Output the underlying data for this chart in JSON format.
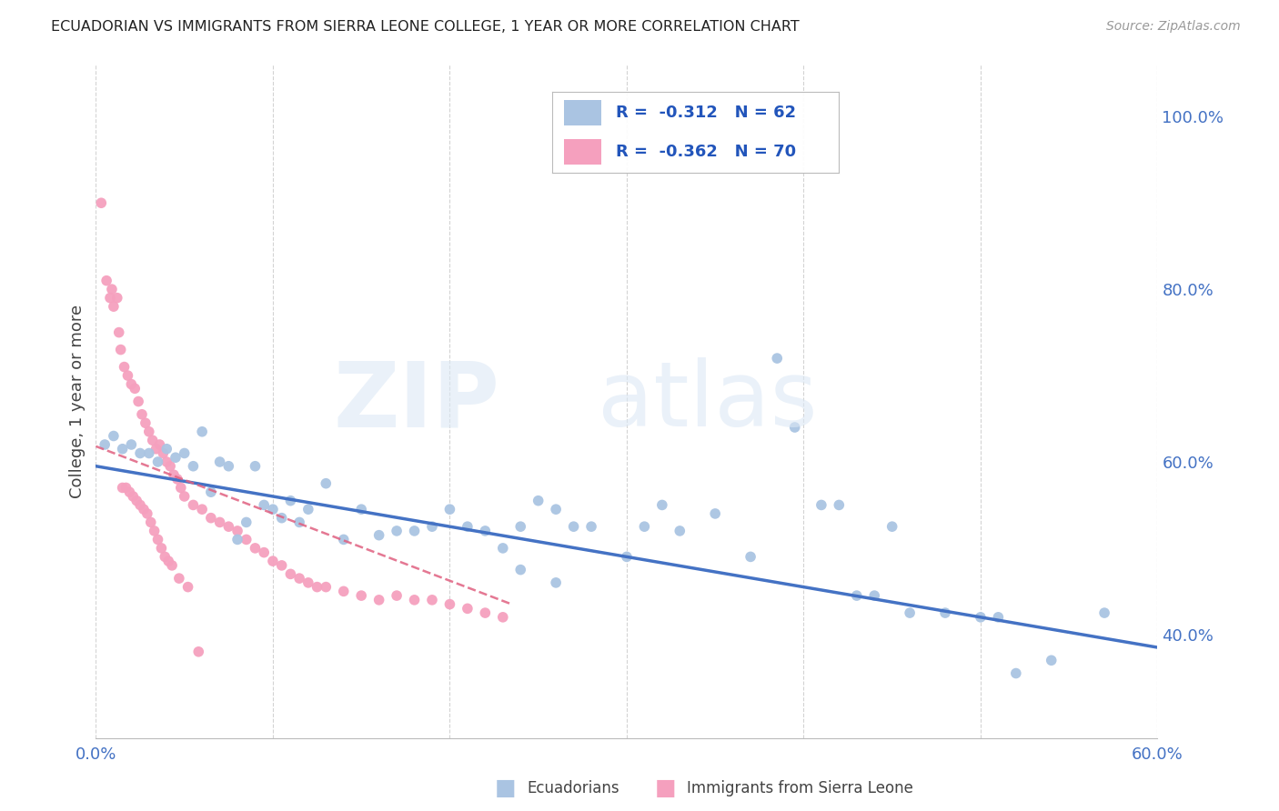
{
  "title": "ECUADORIAN VS IMMIGRANTS FROM SIERRA LEONE COLLEGE, 1 YEAR OR MORE CORRELATION CHART",
  "source": "Source: ZipAtlas.com",
  "ylabel": "College, 1 year or more",
  "ylabel_right_ticks": [
    "40.0%",
    "60.0%",
    "80.0%",
    "100.0%"
  ],
  "ylabel_right_vals": [
    0.4,
    0.6,
    0.8,
    1.0
  ],
  "xmin": 0.0,
  "xmax": 0.6,
  "ymin": 0.28,
  "ymax": 1.06,
  "blue_R": "-0.312",
  "blue_N": "62",
  "pink_R": "-0.362",
  "pink_N": "70",
  "blue_color": "#aac4e2",
  "pink_color": "#f5a0be",
  "blue_line_color": "#4472c4",
  "pink_line_color": "#e06080",
  "legend_text_color": "#2255bb",
  "blue_scatter_x": [
    0.005,
    0.01,
    0.015,
    0.02,
    0.025,
    0.03,
    0.035,
    0.04,
    0.045,
    0.05,
    0.055,
    0.06,
    0.065,
    0.07,
    0.075,
    0.08,
    0.085,
    0.09,
    0.095,
    0.1,
    0.105,
    0.11,
    0.115,
    0.12,
    0.13,
    0.14,
    0.15,
    0.16,
    0.17,
    0.18,
    0.19,
    0.2,
    0.21,
    0.22,
    0.23,
    0.24,
    0.25,
    0.26,
    0.27,
    0.28,
    0.3,
    0.31,
    0.32,
    0.33,
    0.35,
    0.37,
    0.385,
    0.395,
    0.41,
    0.42,
    0.43,
    0.44,
    0.45,
    0.46,
    0.48,
    0.5,
    0.51,
    0.52,
    0.54,
    0.57,
    0.24,
    0.26
  ],
  "blue_scatter_y": [
    0.62,
    0.63,
    0.615,
    0.62,
    0.61,
    0.61,
    0.6,
    0.615,
    0.605,
    0.61,
    0.595,
    0.635,
    0.565,
    0.6,
    0.595,
    0.51,
    0.53,
    0.595,
    0.55,
    0.545,
    0.535,
    0.555,
    0.53,
    0.545,
    0.575,
    0.51,
    0.545,
    0.515,
    0.52,
    0.52,
    0.525,
    0.545,
    0.525,
    0.52,
    0.5,
    0.525,
    0.555,
    0.545,
    0.525,
    0.525,
    0.49,
    0.525,
    0.55,
    0.52,
    0.54,
    0.49,
    0.72,
    0.64,
    0.55,
    0.55,
    0.445,
    0.445,
    0.525,
    0.425,
    0.425,
    0.42,
    0.42,
    0.355,
    0.37,
    0.425,
    0.475,
    0.46
  ],
  "pink_scatter_x": [
    0.003,
    0.006,
    0.009,
    0.012,
    0.014,
    0.016,
    0.018,
    0.02,
    0.022,
    0.024,
    0.026,
    0.028,
    0.03,
    0.032,
    0.034,
    0.036,
    0.038,
    0.04,
    0.042,
    0.044,
    0.046,
    0.048,
    0.05,
    0.055,
    0.06,
    0.065,
    0.07,
    0.075,
    0.08,
    0.085,
    0.09,
    0.095,
    0.1,
    0.105,
    0.11,
    0.115,
    0.12,
    0.125,
    0.13,
    0.14,
    0.15,
    0.16,
    0.17,
    0.18,
    0.19,
    0.2,
    0.21,
    0.22,
    0.23,
    0.008,
    0.01,
    0.013,
    0.015,
    0.017,
    0.019,
    0.021,
    0.023,
    0.025,
    0.027,
    0.029,
    0.031,
    0.033,
    0.035,
    0.037,
    0.039,
    0.041,
    0.043,
    0.047,
    0.052,
    0.058
  ],
  "pink_scatter_y": [
    0.9,
    0.81,
    0.8,
    0.79,
    0.73,
    0.71,
    0.7,
    0.69,
    0.685,
    0.67,
    0.655,
    0.645,
    0.635,
    0.625,
    0.615,
    0.62,
    0.61,
    0.6,
    0.595,
    0.585,
    0.58,
    0.57,
    0.56,
    0.55,
    0.545,
    0.535,
    0.53,
    0.525,
    0.52,
    0.51,
    0.5,
    0.495,
    0.485,
    0.48,
    0.47,
    0.465,
    0.46,
    0.455,
    0.455,
    0.45,
    0.445,
    0.44,
    0.445,
    0.44,
    0.44,
    0.435,
    0.43,
    0.425,
    0.42,
    0.79,
    0.78,
    0.75,
    0.57,
    0.57,
    0.565,
    0.56,
    0.555,
    0.55,
    0.545,
    0.54,
    0.53,
    0.52,
    0.51,
    0.5,
    0.49,
    0.485,
    0.48,
    0.465,
    0.455,
    0.38
  ],
  "blue_line_x0": 0.0,
  "blue_line_x1": 0.6,
  "blue_line_y0": 0.595,
  "blue_line_y1": 0.385,
  "pink_line_x0": 0.0,
  "pink_line_x1": 0.235,
  "pink_line_y0": 0.618,
  "pink_line_y1": 0.435
}
